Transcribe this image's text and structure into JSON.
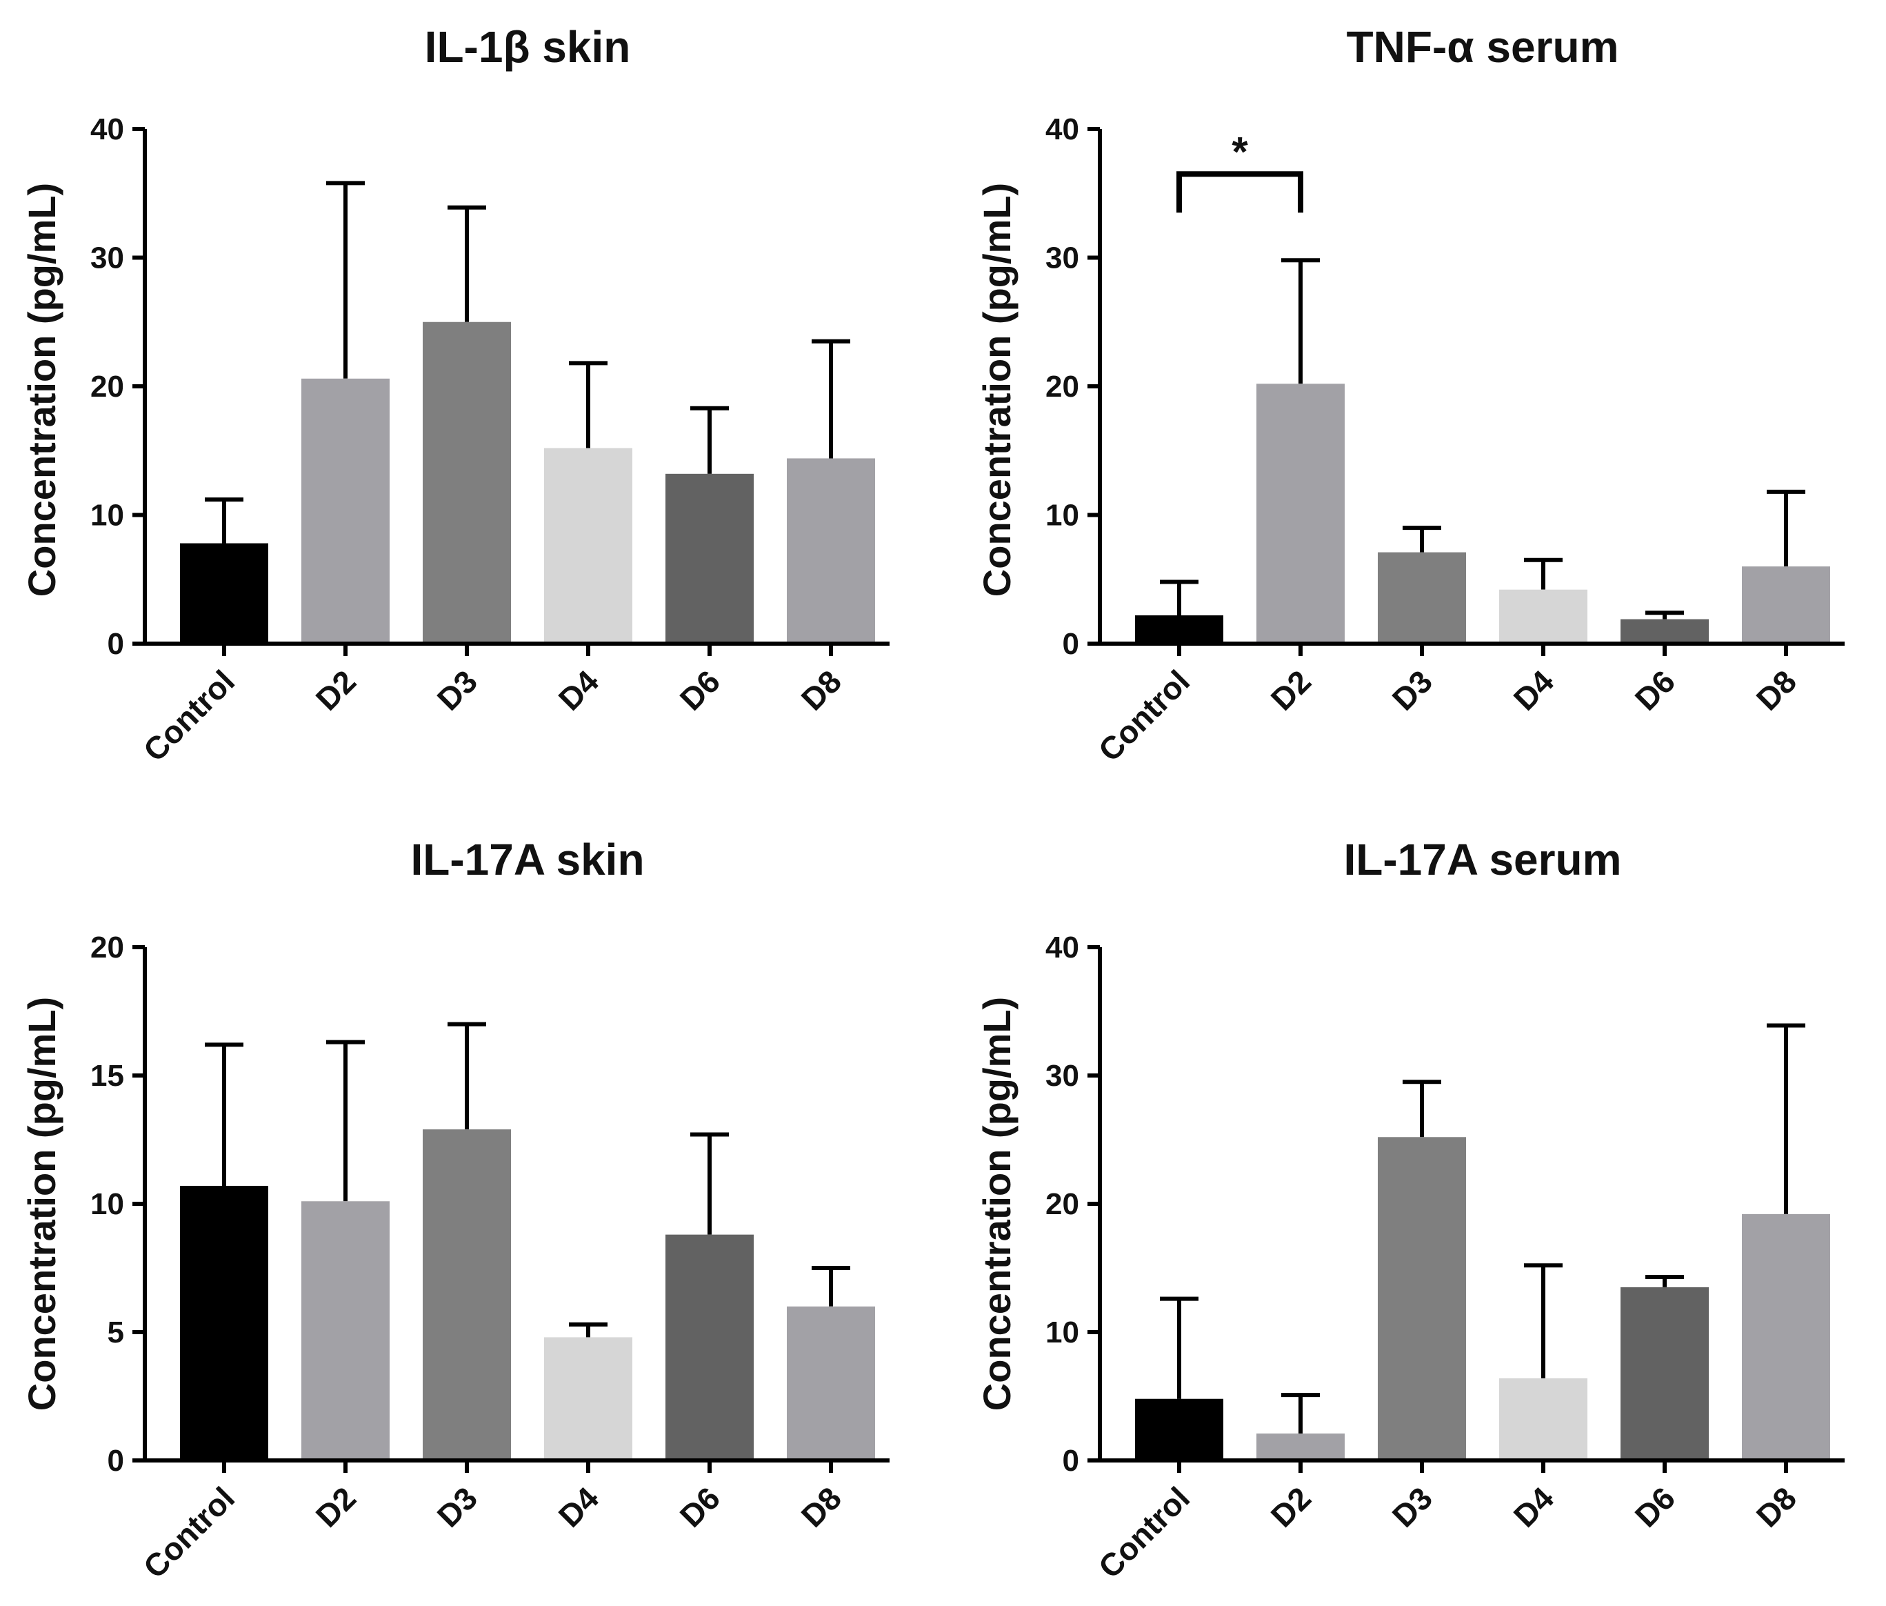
{
  "chart_data": [
    {
      "type": "bar",
      "title": "IL-1β skin",
      "ylabel": "Concentration (pg/mL)",
      "xlabel": "",
      "ylim": [
        0,
        40
      ],
      "yticks": [
        0,
        10,
        20,
        30,
        40
      ],
      "categories": [
        "Control",
        "D2",
        "D3",
        "D4",
        "D6",
        "D8"
      ],
      "values": [
        7.8,
        20.6,
        25.0,
        15.2,
        13.2,
        14.4
      ],
      "error_upper": [
        11.2,
        35.8,
        33.9,
        21.8,
        18.3,
        23.5
      ],
      "colors": [
        "#000000",
        "#a2a1a6",
        "#7f7f7f",
        "#d6d6d6",
        "#626262",
        "#a2a1a6"
      ],
      "annotations": []
    },
    {
      "type": "bar",
      "title": "TNF-α serum",
      "ylabel": "Concentration (pg/mL)",
      "xlabel": "",
      "ylim": [
        0,
        40
      ],
      "yticks": [
        0,
        10,
        20,
        30,
        40
      ],
      "categories": [
        "Control",
        "D2",
        "D3",
        "D4",
        "D6",
        "D8"
      ],
      "values": [
        2.2,
        20.2,
        7.1,
        4.2,
        1.9,
        6.0
      ],
      "error_upper": [
        4.8,
        29.8,
        9.0,
        6.5,
        2.4,
        11.8
      ],
      "colors": [
        "#000000",
        "#a2a1a6",
        "#7f7f7f",
        "#d6d6d6",
        "#626262",
        "#a2a1a6"
      ],
      "annotations": [
        {
          "label": "*",
          "from": "Control",
          "to": "D2",
          "y": 36.5,
          "drop": 3.0
        }
      ]
    },
    {
      "type": "bar",
      "title": "IL-17A skin",
      "ylabel": "Concentration (pg/mL)",
      "xlabel": "",
      "ylim": [
        0,
        20
      ],
      "yticks": [
        0,
        5,
        10,
        15,
        20
      ],
      "categories": [
        "Control",
        "D2",
        "D3",
        "D4",
        "D6",
        "D8"
      ],
      "values": [
        10.7,
        10.1,
        12.9,
        4.8,
        8.8,
        6.0
      ],
      "error_upper": [
        16.2,
        16.3,
        17.0,
        5.3,
        12.7,
        7.5
      ],
      "colors": [
        "#000000",
        "#a2a1a6",
        "#7f7f7f",
        "#d6d6d6",
        "#626262",
        "#a2a1a6"
      ],
      "annotations": []
    },
    {
      "type": "bar",
      "title": "IL-17A serum",
      "ylabel": "Concentration (pg/mL)",
      "xlabel": "",
      "ylim": [
        0,
        40
      ],
      "yticks": [
        0,
        10,
        20,
        30,
        40
      ],
      "categories": [
        "Control",
        "D2",
        "D3",
        "D4",
        "D6",
        "D8"
      ],
      "values": [
        4.8,
        2.1,
        25.2,
        6.4,
        13.5,
        19.2
      ],
      "error_upper": [
        12.6,
        5.1,
        29.5,
        15.2,
        14.3,
        33.9
      ],
      "colors": [
        "#000000",
        "#a2a1a6",
        "#7f7f7f",
        "#d6d6d6",
        "#626262",
        "#a2a1a6"
      ],
      "annotations": []
    }
  ]
}
